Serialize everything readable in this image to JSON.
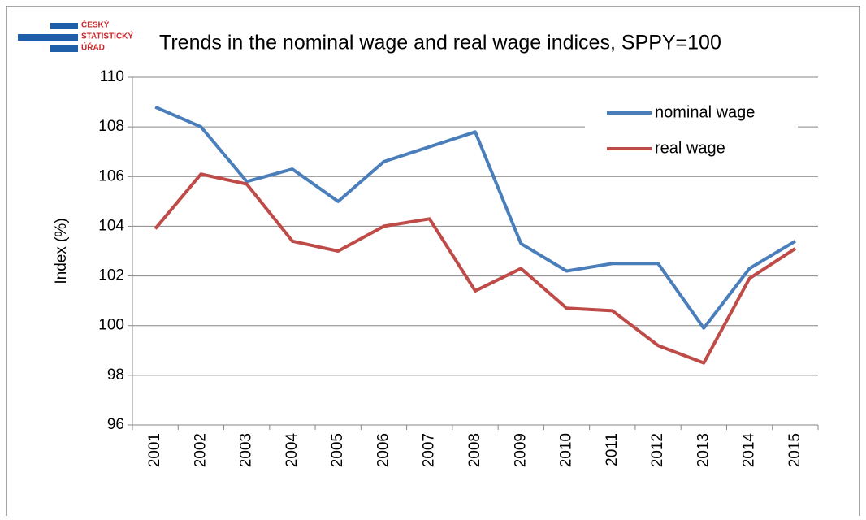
{
  "logo": [
    "ČESKÝ",
    "STATISTICKÝ",
    "ÚŘAD"
  ],
  "chart_data": {
    "type": "line",
    "title": "Trends in the nominal  wage and real wage indices, SPPY=100",
    "y_label": "Index (%)",
    "categories": [
      "2001",
      "2002",
      "2003",
      "2004",
      "2005",
      "2006",
      "2007",
      "2008",
      "2009",
      "2010",
      "2011",
      "2012",
      "2013",
      "2014",
      "2015"
    ],
    "series": [
      {
        "name": "nominal wage",
        "color": "#4a7ebb",
        "values": [
          108.8,
          108.0,
          105.8,
          106.3,
          105.0,
          106.6,
          107.2,
          107.8,
          103.3,
          102.2,
          102.5,
          102.5,
          99.9,
          102.3,
          103.4
        ]
      },
      {
        "name": "real wage",
        "color": "#be4b48",
        "values": [
          103.9,
          106.1,
          105.7,
          103.4,
          103.0,
          104.0,
          104.3,
          101.4,
          102.3,
          100.7,
          100.6,
          99.2,
          98.5,
          101.9,
          103.1
        ]
      }
    ],
    "ylim": [
      96,
      110
    ],
    "yticks": [
      96,
      98,
      100,
      102,
      104,
      106,
      108,
      110
    ],
    "grid": true,
    "legend": "upper right"
  }
}
